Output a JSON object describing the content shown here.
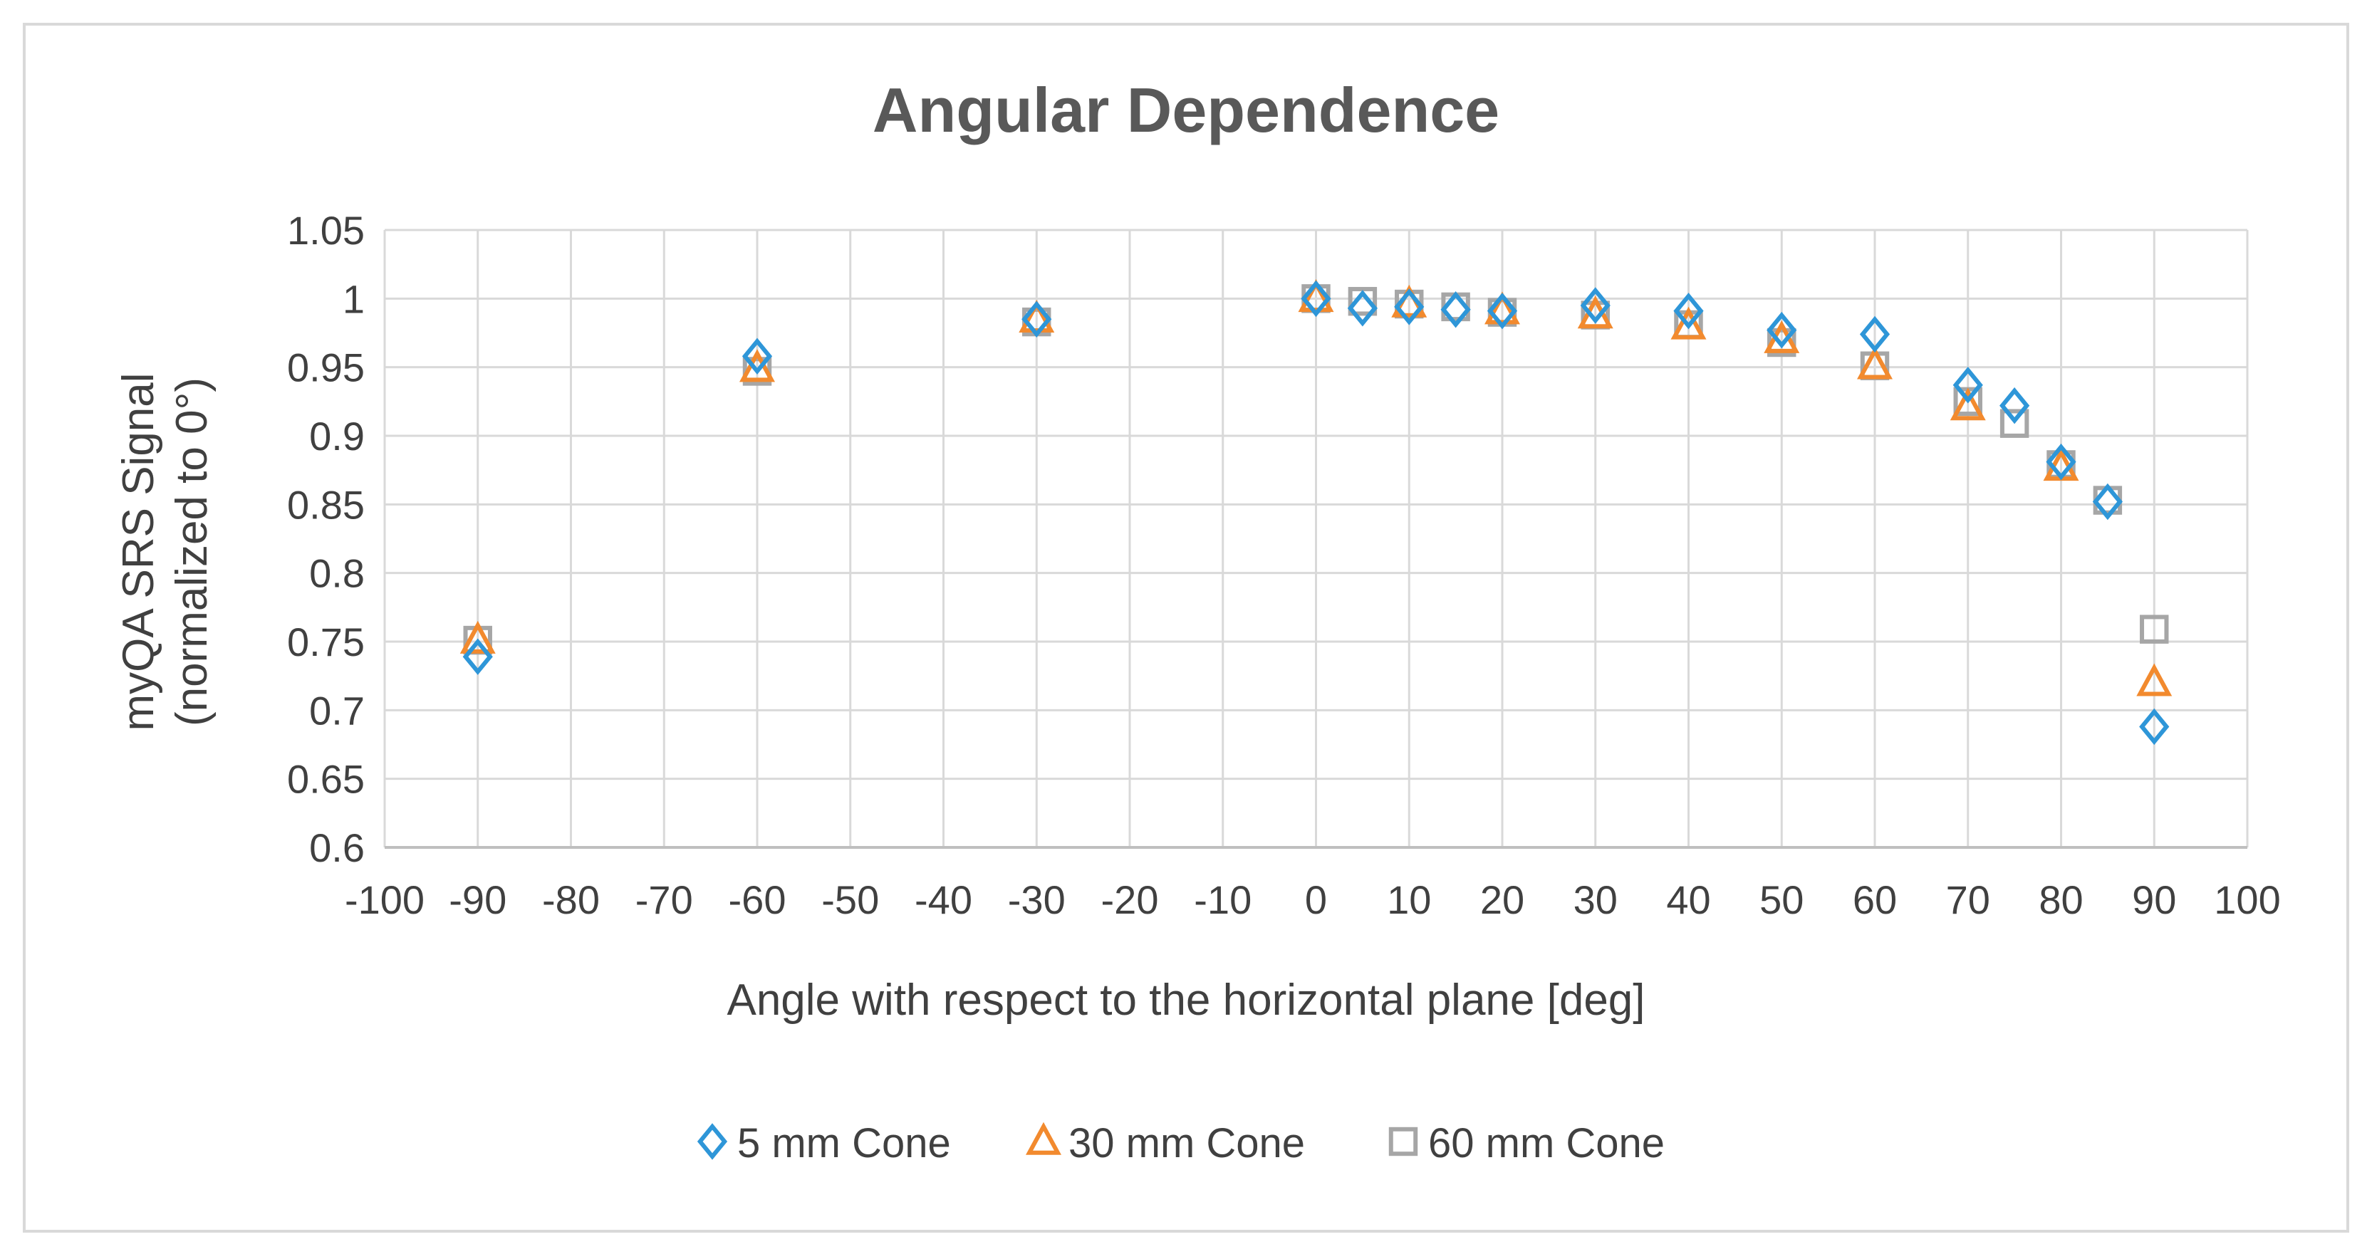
{
  "chart_data": {
    "type": "scatter",
    "title": "Angular Dependence",
    "xlabel": "Angle with respect to the horizontal plane [deg]",
    "ylabel_line1": "myQA SRS Signal",
    "ylabel_line2": "(normalized to 0°)",
    "xlim": [
      -100,
      100
    ],
    "ylim": [
      0.6,
      1.05
    ],
    "x_ticks": [
      -100,
      -90,
      -80,
      -70,
      -60,
      -50,
      -40,
      -30,
      -20,
      -10,
      0,
      10,
      20,
      30,
      40,
      50,
      60,
      70,
      80,
      90,
      100
    ],
    "y_ticks": [
      0.6,
      0.65,
      0.7,
      0.75,
      0.8,
      0.85,
      0.9,
      0.95,
      1,
      1.05
    ],
    "x_tick_labels": [
      "-100",
      "-90",
      "-80",
      "-70",
      "-60",
      "-50",
      "-40",
      "-30",
      "-20",
      "-10",
      "0",
      "10",
      "20",
      "30",
      "40",
      "50",
      "60",
      "70",
      "80",
      "90",
      "100"
    ],
    "y_tick_labels": [
      "0.6",
      "0.65",
      "0.7",
      "0.75",
      "0.8",
      "0.85",
      "0.9",
      "0.95",
      "1",
      "1.05"
    ],
    "grid": true,
    "legend_position": "bottom",
    "series": [
      {
        "name": "5 mm Cone",
        "marker": "diamond",
        "color": "#2E96D8",
        "x": [
          -90,
          -60,
          -30,
          0,
          5,
          10,
          15,
          20,
          30,
          40,
          50,
          60,
          70,
          75,
          80,
          85,
          90
        ],
        "y": [
          0.739,
          0.958,
          0.985,
          1.0,
          0.993,
          0.994,
          0.992,
          0.991,
          0.995,
          0.991,
          0.977,
          0.974,
          0.937,
          0.922,
          0.881,
          0.852,
          0.688
        ]
      },
      {
        "name": "30 mm Cone",
        "marker": "triangle",
        "color": "#F28A2E",
        "x": [
          -90,
          -60,
          -30,
          0,
          10,
          20,
          30,
          40,
          50,
          60,
          70,
          80,
          90
        ],
        "y": [
          0.751,
          0.949,
          0.985,
          1.0,
          0.996,
          0.991,
          0.988,
          0.98,
          0.97,
          0.951,
          0.921,
          0.877,
          0.72
        ]
      },
      {
        "name": "60 mm Cone",
        "marker": "square",
        "color": "#A6A6A6",
        "x": [
          -90,
          -60,
          -30,
          0,
          5,
          10,
          15,
          20,
          30,
          40,
          50,
          60,
          70,
          75,
          80,
          85,
          90
        ],
        "y": [
          0.751,
          0.947,
          0.983,
          1.0,
          0.998,
          0.996,
          0.994,
          0.99,
          0.988,
          0.981,
          0.968,
          0.951,
          0.925,
          0.909,
          0.879,
          0.853,
          0.759
        ]
      }
    ]
  }
}
